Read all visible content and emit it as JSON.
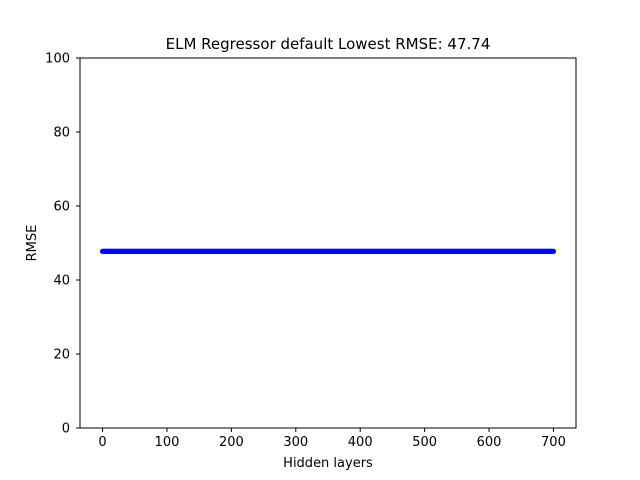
{
  "chart_data": {
    "type": "line",
    "title": "ELM Regressor default Lowest RMSE: 47.74",
    "xlabel": "Hidden layers",
    "ylabel": "RMSE",
    "xlim": [
      -35,
      735
    ],
    "ylim": [
      0,
      100
    ],
    "xticks": [
      0,
      100,
      200,
      300,
      400,
      500,
      600,
      700
    ],
    "yticks": [
      0,
      20,
      40,
      60,
      80,
      100
    ],
    "grid": false,
    "series": [
      {
        "color": "#0000ff",
        "x_start": 0,
        "x_end": 700,
        "x_step": 1,
        "y": 47.74,
        "marker": "point"
      }
    ]
  }
}
